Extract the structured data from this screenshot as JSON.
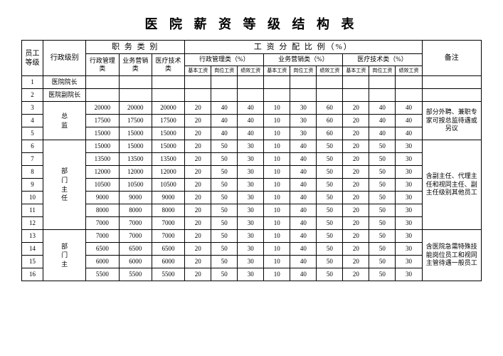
{
  "title": "医 院 薪 资 等 级 结 构 表",
  "headers": {
    "level": "员工等级",
    "adminRank": "行政级别",
    "jobCat": "职 务 类 别",
    "payDist": "工 资 分 配 比 例（%）",
    "remark": "备注",
    "jobCols": [
      "行政管理类",
      "业务营销类",
      "医疗技术类"
    ],
    "distGroups": [
      "行政管理类（%）",
      "业务营销类（%）",
      "医疗技术类（%）"
    ],
    "distSub": [
      "基本工资",
      "岗位工资",
      "绩效工资"
    ]
  },
  "groups": [
    {
      "rank": "医院院长",
      "rows": [
        {
          "lvl": "1",
          "c": [
            "",
            "",
            "",
            "",
            "",
            "",
            "",
            "",
            "",
            "",
            "",
            ""
          ]
        }
      ],
      "remark": ""
    },
    {
      "rank": "医院副院长",
      "rows": [
        {
          "lvl": "2",
          "c": [
            "",
            "",
            "",
            "",
            "",
            "",
            "",
            "",
            "",
            "",
            "",
            ""
          ]
        }
      ],
      "remark": ""
    },
    {
      "rank": "总监",
      "rows": [
        {
          "lvl": "3",
          "c": [
            "20000",
            "20000",
            "20000",
            "20",
            "40",
            "40",
            "10",
            "30",
            "60",
            "20",
            "40",
            "40"
          ]
        },
        {
          "lvl": "4",
          "c": [
            "17500",
            "17500",
            "17500",
            "20",
            "40",
            "40",
            "10",
            "30",
            "60",
            "20",
            "40",
            "40"
          ]
        },
        {
          "lvl": "5",
          "c": [
            "15000",
            "15000",
            "15000",
            "20",
            "40",
            "40",
            "10",
            "30",
            "60",
            "20",
            "40",
            "40"
          ]
        }
      ],
      "remark": "部分外聘、兼职专家可按总监待遇或另议"
    },
    {
      "rank": "部门主任",
      "rows": [
        {
          "lvl": "6",
          "c": [
            "15000",
            "15000",
            "15000",
            "20",
            "50",
            "30",
            "10",
            "40",
            "50",
            "20",
            "50",
            "30"
          ]
        },
        {
          "lvl": "7",
          "c": [
            "13500",
            "13500",
            "13500",
            "20",
            "50",
            "30",
            "10",
            "40",
            "50",
            "20",
            "50",
            "30"
          ]
        },
        {
          "lvl": "8",
          "c": [
            "12000",
            "12000",
            "12000",
            "20",
            "50",
            "30",
            "10",
            "40",
            "50",
            "20",
            "50",
            "30"
          ]
        },
        {
          "lvl": "9",
          "c": [
            "10500",
            "10500",
            "10500",
            "20",
            "50",
            "30",
            "10",
            "40",
            "50",
            "20",
            "50",
            "30"
          ]
        },
        {
          "lvl": "10",
          "c": [
            "9000",
            "9000",
            "9000",
            "20",
            "50",
            "30",
            "10",
            "40",
            "50",
            "20",
            "50",
            "30"
          ]
        },
        {
          "lvl": "11",
          "c": [
            "8000",
            "8000",
            "8000",
            "20",
            "50",
            "30",
            "10",
            "40",
            "50",
            "20",
            "50",
            "30"
          ]
        },
        {
          "lvl": "12",
          "c": [
            "7000",
            "7000",
            "7000",
            "20",
            "50",
            "30",
            "10",
            "40",
            "50",
            "20",
            "50",
            "30"
          ]
        }
      ],
      "remark": "含副主任、代理主任和视同主任、副主任级别其他员工"
    },
    {
      "rank": "部门主",
      "rows": [
        {
          "lvl": "13",
          "c": [
            "7000",
            "7000",
            "7000",
            "20",
            "50",
            "30",
            "10",
            "40",
            "50",
            "20",
            "50",
            "30"
          ]
        },
        {
          "lvl": "14",
          "c": [
            "6500",
            "6500",
            "6500",
            "20",
            "50",
            "30",
            "10",
            "40",
            "50",
            "20",
            "50",
            "30"
          ]
        },
        {
          "lvl": "15",
          "c": [
            "6000",
            "6000",
            "6000",
            "20",
            "50",
            "30",
            "10",
            "40",
            "50",
            "20",
            "50",
            "30"
          ]
        },
        {
          "lvl": "16",
          "c": [
            "5500",
            "5500",
            "5500",
            "20",
            "50",
            "30",
            "10",
            "40",
            "50",
            "20",
            "50",
            "30"
          ]
        }
      ],
      "remark": "含医院急需特殊技能岗位员工和视同主管待遇一般员工"
    }
  ]
}
